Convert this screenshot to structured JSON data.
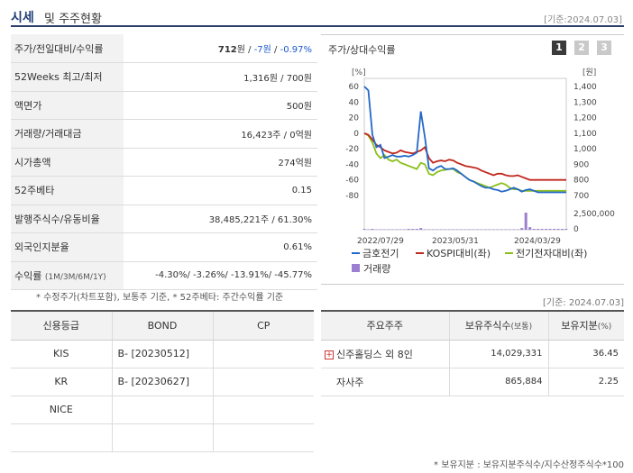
{
  "header": {
    "title_main": "시세",
    "title_rest": "및 주주현황",
    "date": "[기준:2024.07.03]"
  },
  "price_rows": [
    {
      "key": "주가/전일대비/수익률",
      "price": "712",
      "unit": "원",
      "sep1": " / ",
      "change": "-7원",
      "sep2": " / ",
      "rate": "-0.97%"
    },
    {
      "key": "52Weeks 최고/최저",
      "value": "1,316원 / 700원"
    },
    {
      "key": "액면가",
      "value": "500원"
    },
    {
      "key": "거래량/거래대금",
      "value": "16,423주 / 0억원"
    },
    {
      "key": "시가총액",
      "value": "274억원"
    },
    {
      "key": "52주베타",
      "value": "0.15"
    },
    {
      "key": "발행주식수/유동비율",
      "value": "38,485,221주 / 61.30%"
    },
    {
      "key": "외국인지분율",
      "value": "0.61%"
    },
    {
      "key": "수익률",
      "key_small": "(1M/3M/6M/1Y)",
      "value": "-4.30%/ -3.26%/ -13.91%/ -45.77%"
    }
  ],
  "footnote1": "* 수정주가(차트포함), 보통주 기준, * 52주베타: 주간수익률 기준",
  "chart_panel": {
    "title": "주가/상대수익률",
    "tabs": [
      "1",
      "2",
      "3"
    ]
  },
  "chart_data": {
    "type": "line",
    "left_axis_label": "[%]",
    "right_axis_label": "[원]",
    "left_ticks": [
      "60",
      "40",
      "20",
      "0",
      "-20",
      "-40",
      "-60",
      "-80"
    ],
    "right_ticks": [
      "1,400",
      "1,300",
      "1,200",
      "1,100",
      "1,000",
      "900",
      "800",
      "700"
    ],
    "volume_ticks": [
      "2,500,000",
      "0"
    ],
    "x_ticks": [
      "2022/07/29",
      "2023/05/31",
      "2024/03/29"
    ],
    "ylim_left": [
      -80,
      60
    ],
    "x": [
      0,
      1,
      2,
      3,
      4,
      5,
      6,
      7,
      8,
      9,
      10,
      11,
      12,
      13,
      14,
      15,
      16,
      17,
      18,
      19,
      20,
      21,
      22,
      23,
      24,
      25,
      26,
      27,
      28,
      29,
      30,
      31,
      32,
      33,
      34,
      35,
      36,
      37,
      38,
      39,
      40,
      41,
      42,
      43,
      44,
      45,
      46,
      47,
      48,
      49,
      50
    ],
    "series": [
      {
        "name": "금호전기",
        "color": "#2468c8",
        "values": [
          60,
          55,
          -2,
          -18,
          -15,
          -32,
          -30,
          -28,
          -30,
          -30,
          -29,
          -30,
          -28,
          -25,
          28,
          -5,
          -45,
          -48,
          -44,
          -42,
          -46,
          -46,
          -45,
          -48,
          -52,
          -56,
          -60,
          -62,
          -65,
          -68,
          -70,
          -70,
          -72,
          -73,
          -75,
          -74,
          -72,
          -70,
          -72,
          -75,
          -73,
          -72,
          -74,
          -76,
          -76,
          -76,
          -76,
          -76,
          -76,
          -76,
          -76
        ]
      },
      {
        "name": "KOSPI대비(좌)",
        "color": "#c0281e",
        "values": [
          0,
          -2,
          -8,
          -15,
          -18,
          -22,
          -24,
          -26,
          -25,
          -22,
          -24,
          -25,
          -26,
          -24,
          -22,
          -18,
          -32,
          -38,
          -36,
          -35,
          -36,
          -34,
          -35,
          -38,
          -40,
          -42,
          -43,
          -44,
          -45,
          -48,
          -50,
          -52,
          -54,
          -52,
          -52,
          -54,
          -55,
          -55,
          -54,
          -56,
          -58,
          -60,
          -60,
          -60,
          -60,
          -60,
          -60,
          -60,
          -60,
          -60,
          -60
        ]
      },
      {
        "name": "전기전자대비(좌)",
        "color": "#8cbf1a",
        "values": [
          0,
          -3,
          -12,
          -26,
          -32,
          -28,
          -34,
          -36,
          -34,
          -38,
          -40,
          -42,
          -44,
          -46,
          -38,
          -40,
          -52,
          -54,
          -50,
          -48,
          -47,
          -46,
          -46,
          -50,
          -52,
          -56,
          -60,
          -62,
          -64,
          -66,
          -68,
          -70,
          -68,
          -66,
          -64,
          -66,
          -70,
          -72,
          -72,
          -74,
          -74,
          -74,
          -74,
          -74,
          -74,
          -74,
          -74,
          -74,
          -74,
          -74,
          -74
        ]
      }
    ],
    "volume": {
      "name": "거래량",
      "color": "#9b7fd0",
      "values": [
        0.1,
        0.05,
        0.1,
        0.05,
        0.05,
        0.05,
        0.05,
        0.05,
        0.05,
        0.05,
        0.05,
        0.1,
        0.1,
        0.1,
        0.2,
        0.05,
        0.05,
        0.05,
        0.05,
        0.05,
        0.05,
        0.05,
        0.05,
        0.05,
        0.05,
        0.05,
        0.05,
        0.05,
        0.05,
        0.05,
        0.05,
        0.05,
        0.05,
        0.05,
        0.05,
        0.05,
        0.05,
        0.05,
        0.05,
        0.2,
        2.0,
        0.3,
        0.1,
        0.1,
        0.1,
        0.1,
        0.1,
        0.1,
        0.1,
        0.1,
        0.1
      ]
    }
  },
  "date2": "[기준: 2024.07.03]",
  "credit": {
    "headers": [
      "신용등급",
      "BOND",
      "CP"
    ],
    "rows": [
      {
        "agency": "KIS",
        "bond": "B-  [20230512]",
        "cp": ""
      },
      {
        "agency": "KR",
        "bond": "B-  [20230627]",
        "cp": ""
      },
      {
        "agency": "NICE",
        "bond": "",
        "cp": ""
      },
      {
        "agency": "",
        "bond": "",
        "cp": ""
      }
    ]
  },
  "holders": {
    "headers": [
      "주요주주",
      "보유주식수",
      "(보통)",
      "보유지분",
      "(%)"
    ],
    "rows": [
      {
        "name": "신주홀딩스 외 8인",
        "shares": "14,029,331",
        "pct": "36.45",
        "expand": "+"
      },
      {
        "name": "자사주",
        "shares": "865,884",
        "pct": "2.25"
      }
    ]
  },
  "footnote2": "* 보유지분 : 보유지분주식수/지수산정주식수*100"
}
